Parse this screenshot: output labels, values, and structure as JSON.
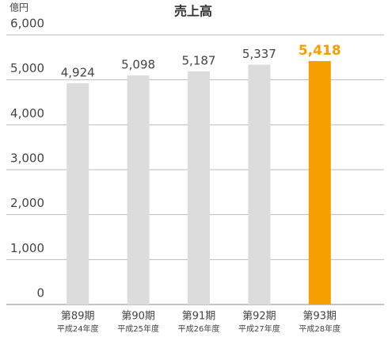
{
  "chart_data": {
    "type": "bar",
    "title": "売上高",
    "unit_label": "億円",
    "categories": [
      "第89期",
      "第90期",
      "第91期",
      "第92期",
      "第93期"
    ],
    "category_sublabels": [
      "平成24年度",
      "平成25年度",
      "平成26年度",
      "平成27年度",
      "平成28年度"
    ],
    "values": [
      4924,
      5098,
      5187,
      5337,
      5418
    ],
    "value_labels": [
      "4,924",
      "5,098",
      "5,187",
      "5,337",
      "5,418"
    ],
    "colors": [
      "#dcdcdc",
      "#dcdcdc",
      "#dcdcdc",
      "#dcdcdc",
      "#f5a000"
    ],
    "ylim": [
      0,
      6000
    ],
    "yticks": [
      0,
      {
        "value": 1000,
        "label": "1,000"
      },
      {
        "value": 2000,
        "label": "2,000"
      },
      {
        "value": 3000,
        "label": "3,000"
      },
      {
        "value": 4000,
        "label": "4,000"
      },
      {
        "value": 5000,
        "label": "5,000"
      },
      {
        "value": 6000,
        "label": "6,000"
      }
    ],
    "grid": true
  }
}
